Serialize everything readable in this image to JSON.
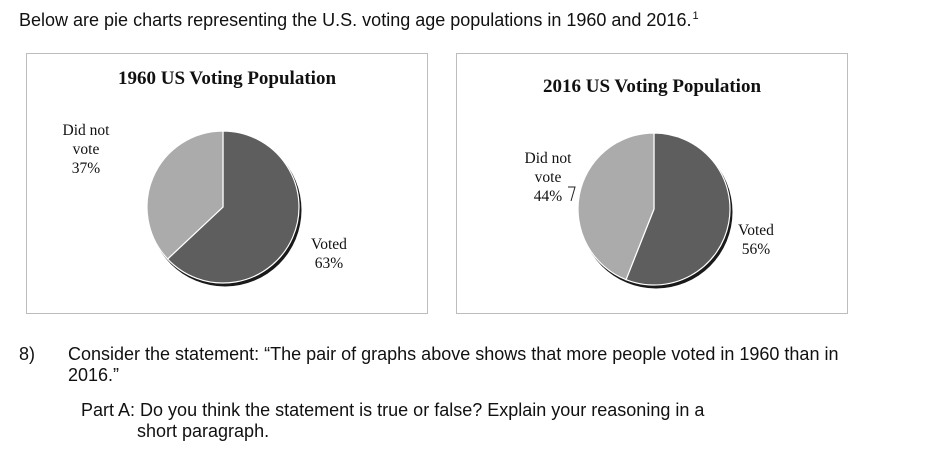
{
  "intro": {
    "text": "Below are pie charts representing the U.S. voting age populations in 1960 and 2016.",
    "footnote_marker": "1"
  },
  "colors": {
    "voted": "#5e5e5e",
    "did_not_vote": "#ababab",
    "shadow": "#1a1a1a",
    "border": "#bdbdbd"
  },
  "chart_data": [
    {
      "type": "pie",
      "title": "1960 US Voting Population",
      "categories": [
        "Voted",
        "Did not vote"
      ],
      "values": [
        63,
        37
      ],
      "labels": [
        {
          "lines": [
            "Voted",
            "63%"
          ]
        },
        {
          "lines": [
            "Did not",
            "vote",
            "37%"
          ]
        }
      ]
    },
    {
      "type": "pie",
      "title": "2016 US Voting Population",
      "categories": [
        "Voted",
        "Did not vote"
      ],
      "values": [
        56,
        44
      ],
      "labels": [
        {
          "lines": [
            "Voted",
            "56%"
          ]
        },
        {
          "lines": [
            "Did not",
            "vote",
            "44%"
          ]
        }
      ]
    }
  ],
  "question": {
    "number": "8)",
    "text": "Consider the statement: “The pair of graphs above shows that more people voted in 1960 than in 2016.”",
    "part_a_label": "Part A:",
    "part_a_line1": "Do you think the statement is true or false? Explain your reasoning in a",
    "part_a_line2": "short paragraph."
  }
}
